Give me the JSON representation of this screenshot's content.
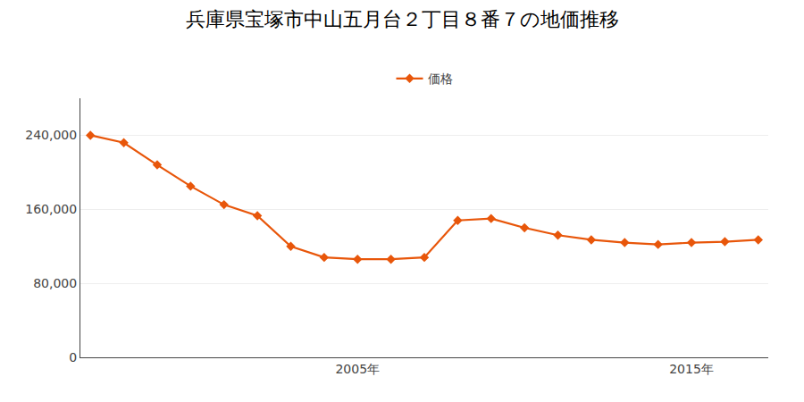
{
  "chart_data": {
    "type": "line",
    "title": "兵庫県宝塚市中山五月台２丁目８番７の地価推移",
    "x": [
      1997,
      1998,
      1999,
      2000,
      2001,
      2002,
      2003,
      2004,
      2005,
      2006,
      2007,
      2008,
      2009,
      2010,
      2011,
      2012,
      2013,
      2014,
      2015,
      2016,
      2017
    ],
    "series": [
      {
        "name": "価格",
        "color": "#e8560a",
        "marker": "diamond",
        "values": [
          240000,
          232000,
          208000,
          185000,
          165000,
          153000,
          120000,
          108000,
          106000,
          106000,
          108000,
          148000,
          150000,
          140000,
          132000,
          127000,
          124000,
          122000,
          124000,
          125000,
          127000
        ]
      }
    ],
    "xlim": [
      1996.7,
      2017.3
    ],
    "xticks": [
      {
        "value": 2005,
        "label": "2005年"
      },
      {
        "value": 2015,
        "label": "2015年"
      }
    ],
    "ylim": [
      0,
      280000
    ],
    "yticks": [
      0,
      {
        "value": 80000,
        "label": "80,000"
      },
      {
        "value": 160000,
        "label": "160,000"
      },
      {
        "value": 240000,
        "label": "240,000"
      }
    ],
    "grid": true,
    "legend": "top"
  }
}
